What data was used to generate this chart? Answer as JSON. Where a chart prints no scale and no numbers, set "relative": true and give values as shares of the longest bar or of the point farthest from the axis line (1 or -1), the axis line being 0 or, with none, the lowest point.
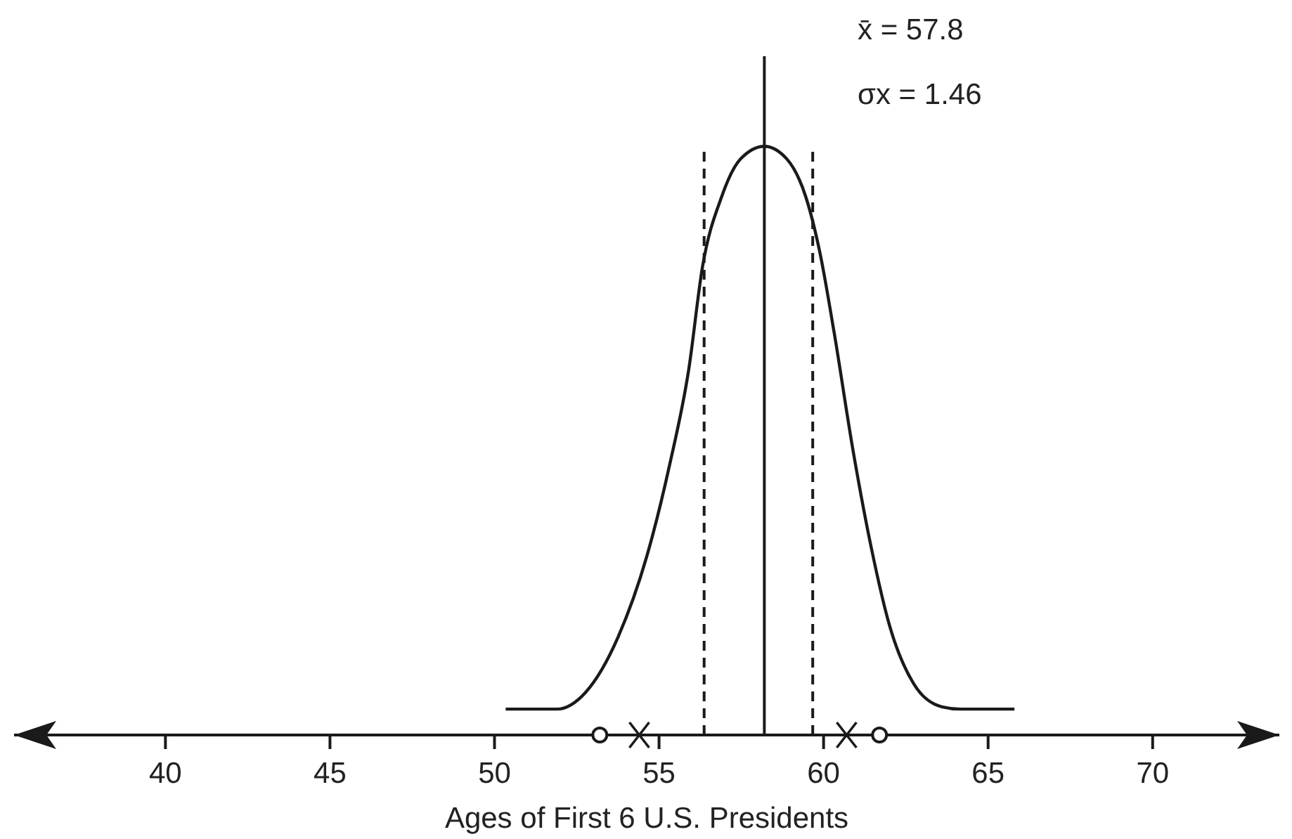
{
  "chart_data": {
    "type": "line",
    "relative": true,
    "xlabel": "Ages of First 6 U.S. Presidents",
    "annotations": [
      "x̄ = 57.8",
      "σx = 1.46"
    ],
    "xlim": [
      35.4,
      73.85
    ],
    "xticks": [
      40,
      45,
      50,
      55,
      60,
      65,
      70
    ],
    "ref_lines": [
      {
        "axis": "x",
        "value": 58.2,
        "line_style": "solid"
      },
      {
        "axis": "x",
        "value": 56.37,
        "line_style": "dashed"
      },
      {
        "axis": "x",
        "value": 59.67,
        "line_style": "dashed"
      }
    ],
    "series": [
      {
        "type": "line",
        "color": "#1a1a1a",
        "marker": "none",
        "x": [
          50.34,
          51.9,
          52.76,
          53.76,
          54.62,
          55.33,
          55.9,
          56.32,
          56.9,
          57.47,
          58.2,
          58.89,
          59.46,
          59.89,
          60.32,
          60.89,
          61.45,
          62.02,
          62.74,
          63.59,
          64.16,
          65.8
        ],
        "values": [
          0.044,
          0.044,
          0.072,
          0.167,
          0.302,
          0.461,
          0.62,
          0.795,
          0.914,
          0.978,
          1,
          0.978,
          0.914,
          0.819,
          0.684,
          0.485,
          0.318,
          0.183,
          0.087,
          0.048,
          0.044,
          0.044
        ]
      },
      {
        "type": "scatter",
        "color": "#1a1a1a",
        "marker": "circle",
        "x": [
          53.2,
          61.7
        ],
        "values": [
          0,
          0
        ]
      },
      {
        "type": "scatter",
        "color": "#1a1a1a",
        "marker": "cross",
        "x": [
          54.4,
          60.7
        ],
        "values": [
          0,
          0
        ]
      }
    ]
  }
}
